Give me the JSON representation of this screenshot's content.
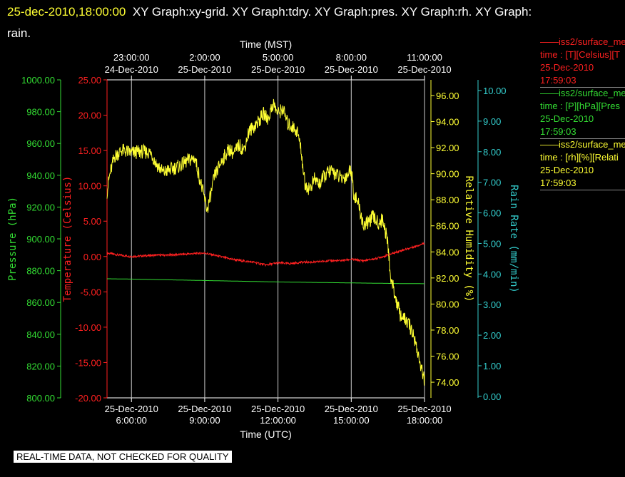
{
  "title": {
    "timestamp": "25-dec-2010,18:00:00",
    "text": "XY Graph:xy-grid.  XY Graph:tdry.  XY Graph:pres.  XY Graph:rh.  XY Graph:",
    "line2": "rain."
  },
  "banner": "REAL-TIME DATA, NOT CHECKED FOR QUALITY",
  "legend": [
    {
      "l1": "——iss2/surface_me",
      "l2": "time : [T][Celsius][T",
      "l3": "25-Dec-2010",
      "l4": "17:59:03",
      "color": "#ff2020"
    },
    {
      "l1": "——iss2/surface_me",
      "l2": "time : [P][hPa][Pres",
      "l3": "25-Dec-2010",
      "l4": "17:59:03",
      "color": "#33dd33"
    },
    {
      "l1": "——iss2/surface_me",
      "l2": "time : [rh][%][Relati",
      "l3": "25-Dec-2010",
      "l4": "17:59:03",
      "color": "#ffff33"
    }
  ],
  "chart_data": {
    "type": "line",
    "xlabel": "Time (UTC)",
    "x2label": "Time (MST)",
    "xlim_hours_utc": [
      5.0,
      18.0
    ],
    "bottom_ticks": [
      {
        "x": 6,
        "l1": "25-Dec-2010",
        "l2": "6:00:00"
      },
      {
        "x": 9,
        "l1": "25-Dec-2010",
        "l2": "9:00:00"
      },
      {
        "x": 12,
        "l1": "25-Dec-2010",
        "l2": "12:00:00"
      },
      {
        "x": 15,
        "l1": "25-Dec-2010",
        "l2": "15:00:00"
      },
      {
        "x": 18,
        "l1": "25-Dec-2010",
        "l2": "18:00:00"
      }
    ],
    "top_ticks": [
      {
        "x": 6,
        "l1": "23:00:00",
        "l2": "24-Dec-2010"
      },
      {
        "x": 9,
        "l1": "2:00:00",
        "l2": "25-Dec-2010"
      },
      {
        "x": 12,
        "l1": "5:00:00",
        "l2": "25-Dec-2010"
      },
      {
        "x": 15,
        "l1": "8:00:00",
        "l2": "25-Dec-2010"
      },
      {
        "x": 18,
        "l1": "11:00:00",
        "l2": "25-Dec-2010"
      }
    ],
    "axes": [
      {
        "id": "pres",
        "label": "Pressure (hPa)",
        "color": "#33dd33",
        "ylim": [
          800,
          1000
        ],
        "ticks": [
          "800.00",
          "820.00",
          "840.00",
          "860.00",
          "880.00",
          "900.00",
          "920.00",
          "940.00",
          "960.00",
          "980.00",
          "1000.00"
        ]
      },
      {
        "id": "tdry",
        "label": "Temperature (Celsius)",
        "color": "#ff2020",
        "ylim": [
          -20,
          25
        ],
        "ticks": [
          "-20.00",
          "-15.00",
          "-10.00",
          "-5.00",
          "0.00",
          "5.00",
          "10.00",
          "15.00",
          "20.00",
          "25.00"
        ]
      },
      {
        "id": "rh",
        "label": "Relative Humidity (%)",
        "color": "#ffff33",
        "ylim": [
          72.8,
          97.2
        ],
        "ticks": [
          "74.00",
          "76.00",
          "78.00",
          "80.00",
          "82.00",
          "84.00",
          "86.00",
          "88.00",
          "90.00",
          "92.00",
          "94.00",
          "96.00"
        ]
      },
      {
        "id": "rain",
        "label": "Rain Rate (mm/min)",
        "color": "#33cccc",
        "ylim": [
          -0.05,
          10.35
        ],
        "ticks": [
          "0.00",
          "1.00",
          "2.00",
          "3.00",
          "4.00",
          "5.00",
          "6.00",
          "7.00",
          "8.00",
          "9.00",
          "10.00"
        ]
      }
    ],
    "series": [
      {
        "axis": "tdry",
        "color": "#ff2020",
        "x": [
          5.0,
          5.5,
          6.0,
          6.5,
          7.0,
          7.5,
          8.0,
          8.5,
          9.0,
          9.5,
          10.0,
          10.5,
          11.0,
          11.5,
          12.0,
          12.5,
          13.0,
          13.5,
          14.0,
          14.5,
          15.0,
          15.5,
          16.0,
          16.5,
          17.0,
          17.5,
          18.0
        ],
        "y": [
          0.5,
          0.2,
          0.0,
          0.1,
          0.2,
          0.2,
          0.3,
          0.4,
          0.5,
          0.1,
          -0.3,
          -0.6,
          -0.8,
          -1.2,
          -0.9,
          -1.0,
          -0.8,
          -0.8,
          -0.6,
          -0.6,
          -0.4,
          -0.6,
          -0.3,
          0.2,
          0.8,
          1.3,
          1.9
        ]
      },
      {
        "axis": "pres",
        "color": "#33dd33",
        "x": [
          5.0,
          6.0,
          7.0,
          8.0,
          9.0,
          10.0,
          11.0,
          12.0,
          13.0,
          14.0,
          15.0,
          16.0,
          17.0,
          18.0
        ],
        "y": [
          874.9,
          874.7,
          874.4,
          874.1,
          873.8,
          873.5,
          873.2,
          872.9,
          872.7,
          872.5,
          872.3,
          872.1,
          871.9,
          871.8
        ]
      },
      {
        "axis": "rh",
        "color": "#ffff33",
        "x": [
          5.0,
          5.1,
          5.3,
          5.6,
          6.0,
          6.4,
          6.8,
          7.0,
          7.3,
          7.7,
          8.0,
          8.3,
          8.6,
          8.9,
          9.1,
          9.25,
          9.4,
          9.7,
          10.0,
          10.2,
          10.4,
          10.6,
          10.8,
          11.0,
          11.2,
          11.4,
          11.6,
          11.8,
          12.0,
          12.2,
          12.4,
          12.6,
          12.8,
          12.95,
          13.1,
          13.3,
          13.5,
          13.7,
          13.9,
          14.1,
          14.3,
          14.6,
          14.8,
          15.0,
          15.1,
          15.3,
          15.5,
          15.7,
          15.9,
          16.1,
          16.3,
          16.5,
          16.6,
          16.8,
          17.0,
          17.2,
          17.4,
          17.6,
          17.8,
          17.9,
          18.0
        ],
        "y": [
          88.6,
          89.8,
          91.3,
          91.8,
          91.6,
          91.7,
          91.6,
          90.8,
          90.1,
          90.4,
          90.6,
          91.0,
          91.2,
          88.8,
          87.2,
          88.4,
          89.8,
          91.0,
          91.9,
          91.5,
          92.2,
          91.8,
          93.2,
          93.6,
          94.0,
          94.6,
          94.2,
          95.4,
          94.6,
          95.0,
          93.8,
          93.6,
          93.2,
          91.8,
          89.2,
          88.8,
          89.6,
          89.2,
          89.8,
          90.2,
          90.1,
          89.6,
          89.8,
          90.4,
          88.5,
          87.6,
          86.0,
          86.3,
          86.7,
          86.2,
          86.5,
          84.6,
          82.2,
          80.6,
          79.2,
          78.8,
          78.3,
          77.3,
          75.6,
          74.8,
          74.2
        ]
      }
    ]
  }
}
